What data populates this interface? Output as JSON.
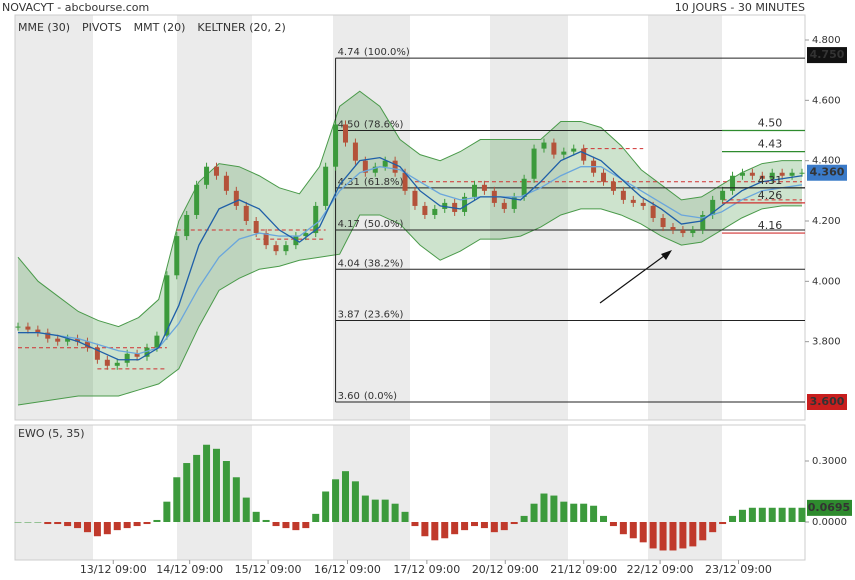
{
  "chart_data": {
    "type": "candlestick",
    "title": "NOVACYT - abcbourse.com",
    "subtitle": "10 JOURS - 30 MINUTES",
    "legend": [
      {
        "name": "MME (30)",
        "color": "#3a7ac8"
      },
      {
        "name": "PIVOTS",
        "color": "#555555"
      },
      {
        "name": "MMT (20)",
        "color": "#3a7ac8"
      },
      {
        "name": "KELTNER (20, 2)",
        "color": "#4a9a4a"
      }
    ],
    "ylim": [
      3.6,
      4.8
    ],
    "yticks": [
      {
        "value": 3.8,
        "label": "3.800"
      },
      {
        "value": 4.0,
        "label": "4.000"
      },
      {
        "value": 4.2,
        "label": "4.200"
      },
      {
        "value": 4.4,
        "label": "4.400"
      },
      {
        "value": 4.6,
        "label": "4.600"
      },
      {
        "value": 4.8,
        "label": "4.800"
      }
    ],
    "xlim": [
      0,
      79
    ],
    "xticks": [
      {
        "value": 9.6,
        "label": "13/12 09:00"
      },
      {
        "value": 17.3,
        "label": "14/12 09:00"
      },
      {
        "value": 25.2,
        "label": "15/12 09:00"
      },
      {
        "value": 33.2,
        "label": "16/12 09:00"
      },
      {
        "value": 41.2,
        "label": "17/12 09:00"
      },
      {
        "value": 49.1,
        "label": "20/12 09:00"
      },
      {
        "value": 57.0,
        "label": "21/12 09:00"
      },
      {
        "value": 64.7,
        "label": "22/12 09:00"
      },
      {
        "value": 72.6,
        "label": "23/12 09:00"
      }
    ],
    "close": [
      3.85,
      3.84,
      3.83,
      3.81,
      3.8,
      3.81,
      3.8,
      3.78,
      3.74,
      3.72,
      3.73,
      3.76,
      3.75,
      3.78,
      3.82,
      4.02,
      4.15,
      4.22,
      4.32,
      4.38,
      4.35,
      4.3,
      4.25,
      4.2,
      4.16,
      4.12,
      4.1,
      4.12,
      4.15,
      4.16,
      4.25,
      4.38,
      4.52,
      4.46,
      4.4,
      4.36,
      4.38,
      4.4,
      4.36,
      4.3,
      4.25,
      4.22,
      4.24,
      4.26,
      4.23,
      4.28,
      4.32,
      4.3,
      4.26,
      4.24,
      4.28,
      4.34,
      4.44,
      4.46,
      4.42,
      4.43,
      4.44,
      4.4,
      4.36,
      4.33,
      4.3,
      4.27,
      4.26,
      4.25,
      4.21,
      4.18,
      4.17,
      4.16,
      4.17,
      4.22,
      4.27,
      4.3,
      4.35,
      4.36,
      4.35,
      4.34,
      4.36,
      4.35,
      4.36,
      4.36
    ],
    "up_color": "#3c9a3c",
    "down_color": "#b4523a",
    "lines": [
      {
        "name": "MME (30)",
        "color": "#6aa6dc",
        "values": [
          3.83,
          3.83,
          3.82,
          3.81,
          3.79,
          3.77,
          3.76,
          3.78,
          3.86,
          3.98,
          4.08,
          4.14,
          4.16,
          4.15,
          4.15,
          4.2,
          4.3,
          4.36,
          4.38,
          4.37,
          4.33,
          4.29,
          4.27,
          4.28,
          4.28,
          4.28,
          4.31,
          4.35,
          4.38,
          4.38,
          4.34,
          4.3,
          4.26,
          4.22,
          4.21,
          4.23,
          4.27,
          4.3,
          4.31,
          4.32
        ]
      },
      {
        "name": "MMT (20)",
        "color": "#1f5fa8",
        "values": [
          3.83,
          3.83,
          3.82,
          3.8,
          3.77,
          3.74,
          3.74,
          3.78,
          3.92,
          4.12,
          4.24,
          4.27,
          4.24,
          4.17,
          4.13,
          4.18,
          4.32,
          4.4,
          4.41,
          4.38,
          4.3,
          4.25,
          4.24,
          4.28,
          4.28,
          4.27,
          4.33,
          4.4,
          4.43,
          4.4,
          4.34,
          4.28,
          4.24,
          4.19,
          4.2,
          4.25,
          4.3,
          4.33,
          4.34,
          4.35
        ]
      }
    ],
    "keltner": {
      "color": "#4a9a4a",
      "upper": [
        4.08,
        4.0,
        3.95,
        3.9,
        3.87,
        3.85,
        3.88,
        3.94,
        4.2,
        4.33,
        4.39,
        4.38,
        4.35,
        4.31,
        4.29,
        4.38,
        4.58,
        4.63,
        4.58,
        4.47,
        4.42,
        4.4,
        4.43,
        4.47,
        4.47,
        4.47,
        4.47,
        4.53,
        4.53,
        4.51,
        4.45,
        4.37,
        4.32,
        4.27,
        4.28,
        4.32,
        4.36,
        4.39,
        4.4,
        4.4
      ],
      "lower": [
        3.59,
        3.6,
        3.61,
        3.62,
        3.62,
        3.62,
        3.64,
        3.66,
        3.71,
        3.85,
        3.97,
        4.01,
        4.04,
        4.05,
        4.07,
        4.08,
        4.09,
        4.22,
        4.22,
        4.19,
        4.12,
        4.07,
        4.1,
        4.14,
        4.14,
        4.15,
        4.18,
        4.22,
        4.24,
        4.24,
        4.22,
        4.19,
        4.15,
        4.12,
        4.13,
        4.17,
        4.21,
        4.24,
        4.25,
        4.25
      ]
    },
    "pivots": [
      {
        "value": 3.78,
        "from": 0,
        "to": 15
      },
      {
        "value": 3.71,
        "from": 8,
        "to": 15
      },
      {
        "value": 4.17,
        "from": 16,
        "to": 31
      },
      {
        "value": 4.14,
        "from": 24,
        "to": 31
      },
      {
        "value": 4.33,
        "from": 40,
        "to": 79
      },
      {
        "value": 4.44,
        "from": 57,
        "to": 63
      },
      {
        "value": 4.27,
        "from": 71,
        "to": 79
      }
    ],
    "fibonacci": [
      {
        "value": 4.74,
        "label": "4.74",
        "pct": "(100.0%)"
      },
      {
        "value": 4.5,
        "label": "4.50",
        "pct": "(78.6%)"
      },
      {
        "value": 4.31,
        "label": "4.31",
        "pct": "(61.8%)"
      },
      {
        "value": 4.17,
        "label": "4.17",
        "pct": "(50.0%)"
      },
      {
        "value": 4.04,
        "label": "4.04",
        "pct": "(38.2%)"
      },
      {
        "value": 3.87,
        "label": "3.87",
        "pct": "(23.6%)"
      },
      {
        "value": 3.6,
        "label": "3.60",
        "pct": "(0.0%)"
      }
    ],
    "fib_from": 32,
    "right_levels": [
      {
        "value": 4.5,
        "label": "4.50",
        "color": "#2e8b2e"
      },
      {
        "value": 4.43,
        "label": "4.43",
        "color": "#2e8b2e"
      },
      {
        "value": 4.31,
        "label": "4.31",
        "color": "#222222"
      },
      {
        "value": 4.26,
        "label": "4.26",
        "color": "#d03030"
      },
      {
        "value": 4.16,
        "label": "4.16",
        "color": "#d03030"
      }
    ],
    "value_boxes": [
      {
        "value": 4.75,
        "label": "4.750",
        "color": "#111111"
      },
      {
        "value": 4.36,
        "label": "4.360",
        "color": "#3a7ac8"
      },
      {
        "value": 3.6,
        "label": "3.600",
        "color": "#c81e1e"
      }
    ],
    "ewo": {
      "name": "EWO (5, 35)",
      "ylim": [
        -0.17,
        0.4
      ],
      "yticks": [
        {
          "value": 0,
          "label": "0.0000"
        },
        {
          "value": 0.3,
          "label": "0.3000"
        }
      ],
      "pos_color": "#3c9a3c",
      "neg_color": "#c0392b",
      "values": [
        0.0,
        0.0,
        0.0,
        -0.01,
        -0.01,
        -0.02,
        -0.03,
        -0.05,
        -0.07,
        -0.06,
        -0.04,
        -0.03,
        -0.02,
        -0.01,
        0.01,
        0.1,
        0.22,
        0.29,
        0.33,
        0.38,
        0.36,
        0.3,
        0.22,
        0.12,
        0.05,
        0.01,
        -0.02,
        -0.03,
        -0.04,
        -0.03,
        0.04,
        0.15,
        0.21,
        0.25,
        0.2,
        0.13,
        0.11,
        0.11,
        0.09,
        0.05,
        -0.02,
        -0.07,
        -0.09,
        -0.08,
        -0.06,
        -0.04,
        -0.02,
        -0.03,
        -0.05,
        -0.04,
        -0.01,
        0.03,
        0.09,
        0.14,
        0.13,
        0.1,
        0.09,
        0.09,
        0.08,
        0.03,
        -0.02,
        -0.06,
        -0.08,
        -0.1,
        -0.13,
        -0.14,
        -0.14,
        -0.13,
        -0.12,
        -0.09,
        -0.05,
        -0.01,
        0.03,
        0.06,
        0.07,
        0.07,
        0.07,
        0.07,
        0.07,
        0.07
      ],
      "last": {
        "value": 0.0695,
        "label": "0.0695",
        "color": "#2e8b2e"
      }
    }
  }
}
